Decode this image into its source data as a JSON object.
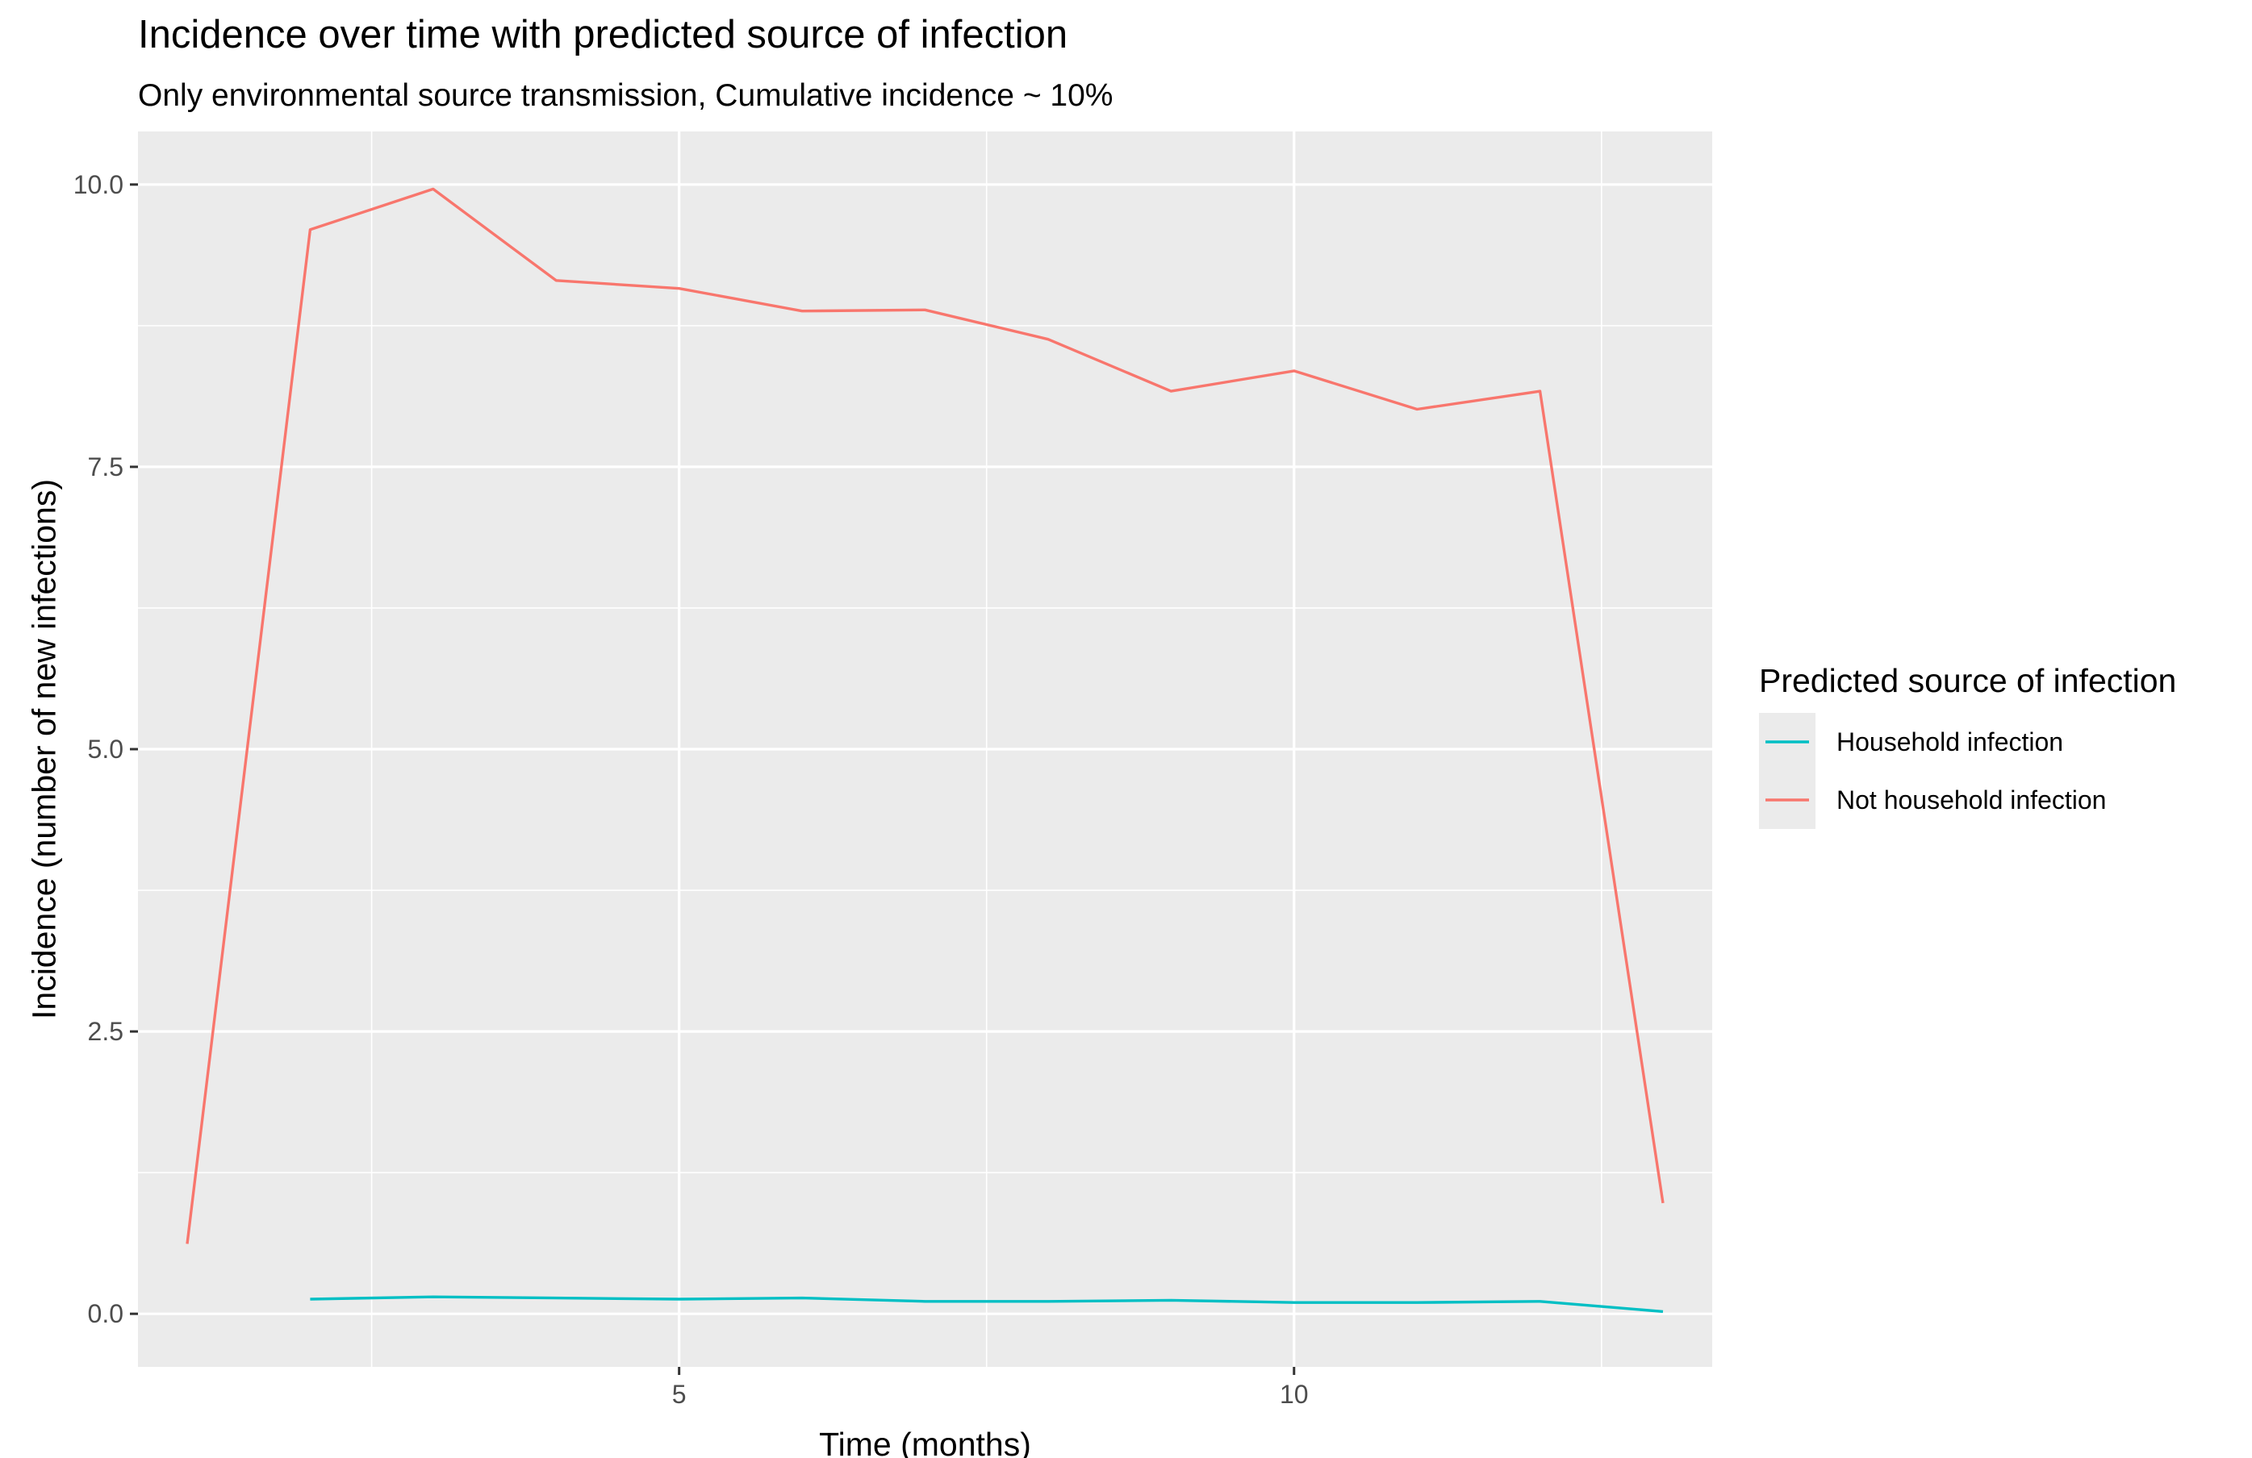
{
  "chart_data": {
    "type": "line",
    "title": "Incidence over time with predicted source of infection",
    "subtitle": "Only environmental source transmission, Cumulative incidence ~ 10%",
    "xlabel": "Time (months)",
    "ylabel": "Incidence (number of new infections)",
    "xlim": [
      0.6,
      13.4
    ],
    "ylim": [
      -0.47,
      10.47
    ],
    "x_ticks": [
      5,
      10
    ],
    "x_tick_labels": [
      "5",
      "10"
    ],
    "x_minor_ticks": [
      2.5,
      7.5,
      12.5
    ],
    "y_ticks": [
      0,
      2.5,
      5,
      7.5,
      10
    ],
    "y_tick_labels": [
      "0.0",
      "2.5",
      "5.0",
      "7.5",
      "10.0"
    ],
    "y_minor_ticks": [
      1.25,
      3.75,
      6.25,
      8.75
    ],
    "grid": true,
    "panel_background": "#ebebeb",
    "gridline_color": "#ffffff",
    "legend": {
      "title": "Predicted source of infection",
      "position": "right"
    },
    "series": [
      {
        "name": "Household infection",
        "color": "#00bfc4",
        "x": [
          2,
          3,
          4,
          5,
          6,
          7,
          8,
          9,
          10,
          11,
          12,
          13
        ],
        "values": [
          0.13,
          0.15,
          0.14,
          0.13,
          0.14,
          0.11,
          0.11,
          0.12,
          0.1,
          0.1,
          0.11,
          0.02
        ]
      },
      {
        "name": "Not household infection",
        "color": "#f8766d",
        "x": [
          1,
          2,
          3,
          4,
          5,
          6,
          7,
          8,
          9,
          10,
          11,
          12,
          13
        ],
        "values": [
          0.62,
          9.6,
          9.96,
          9.15,
          9.08,
          8.88,
          8.89,
          8.63,
          8.17,
          8.35,
          8.01,
          8.17,
          0.98
        ]
      }
    ]
  }
}
